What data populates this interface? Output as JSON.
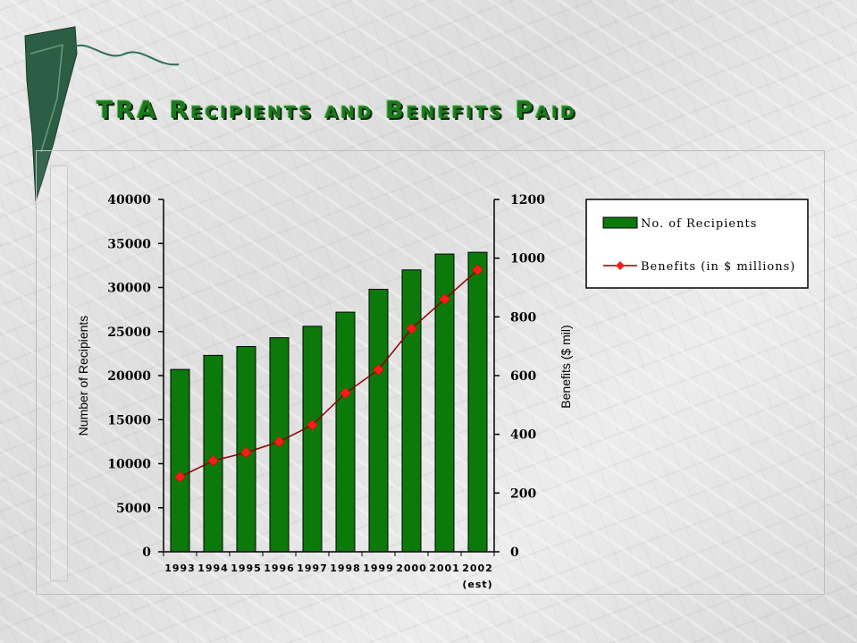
{
  "page": {
    "title": "TRA Recipients and Benefits Paid"
  },
  "colors": {
    "bar_fill": "#0b7a0b",
    "line_color": "#8b0000",
    "marker_color": "#ff1a1a",
    "title_color": "#1c7a1c"
  },
  "chart_data": {
    "type": "bar",
    "title": "TRA Recipients and Benefits Paid",
    "categories": [
      "1993",
      "1994",
      "1995",
      "1996",
      "1997",
      "1998",
      "1999",
      "2000",
      "2001",
      "2002"
    ],
    "category_notes": {
      "2002": "(est)"
    },
    "ylabel": "Number of Recipients",
    "ylabel_right": "Benefits ($ mil)",
    "ylim": [
      0,
      40000
    ],
    "ylim_right": [
      0,
      1200
    ],
    "yticks": [
      "0",
      "5000",
      "10000",
      "15000",
      "20000",
      "25000",
      "30000",
      "35000",
      "40000"
    ],
    "yticks_right": [
      "0",
      "200",
      "400",
      "600",
      "800",
      "1000",
      "1200"
    ],
    "grid": false,
    "legend_position": "top-right",
    "series": [
      {
        "name": "No. of Recipients",
        "type": "bar",
        "axis": "left",
        "values": [
          20700,
          22300,
          23300,
          24300,
          25600,
          27200,
          29800,
          32000,
          33800,
          34000
        ]
      },
      {
        "name": "Benefits (in $ millions)",
        "type": "line",
        "axis": "right",
        "values": [
          255,
          310,
          338,
          375,
          432,
          540,
          620,
          760,
          860,
          960
        ]
      }
    ]
  }
}
